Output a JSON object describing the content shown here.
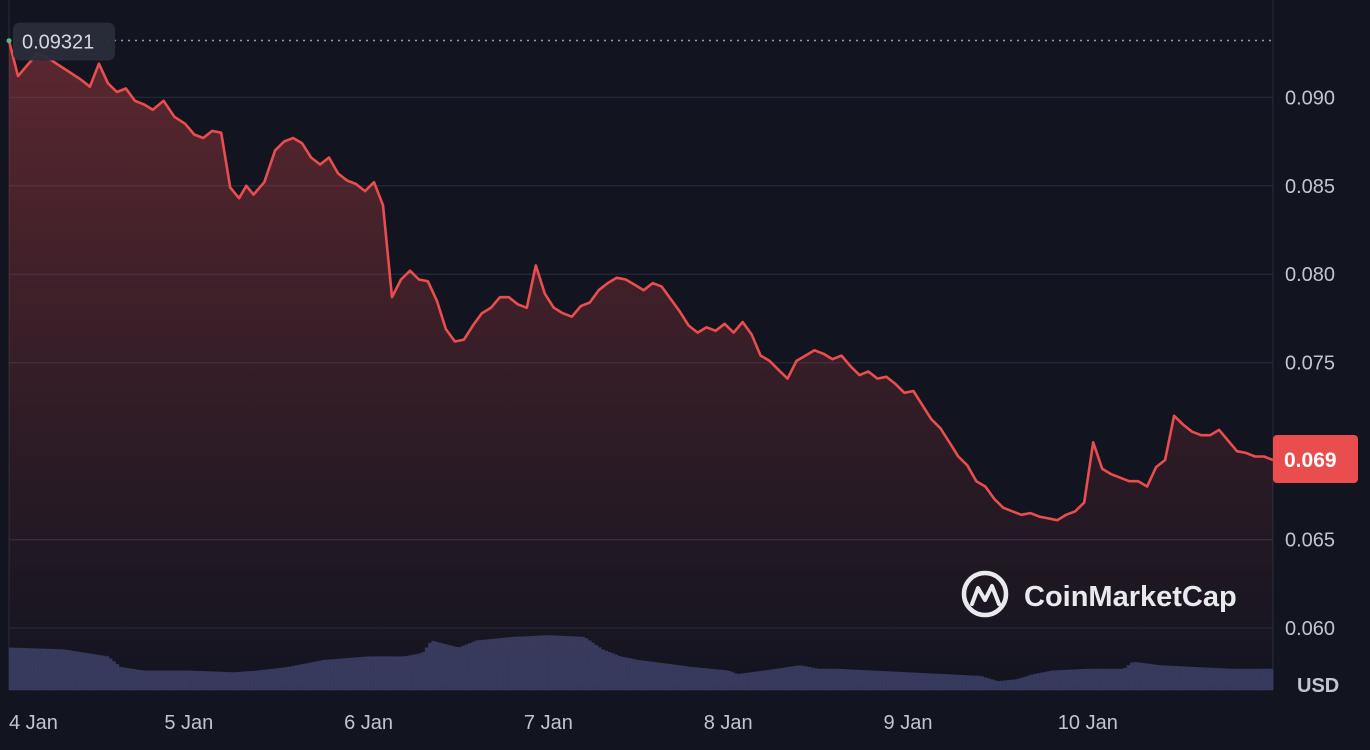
{
  "chart_data": {
    "type": "line",
    "currency": "USD",
    "open_value_label": "0.09321",
    "open_value": 0.09321,
    "last_value_label": "0.069",
    "last_value": 0.0695,
    "ylim": [
      0.0565,
      0.0955
    ],
    "xlim": [
      0,
      7.03
    ],
    "y_ticks": [
      {
        "value": 0.09,
        "label": "0.090"
      },
      {
        "value": 0.085,
        "label": "0.085"
      },
      {
        "value": 0.08,
        "label": "0.080"
      },
      {
        "value": 0.075,
        "label": "0.075"
      },
      {
        "value": 0.065,
        "label": "0.065"
      },
      {
        "value": 0.06,
        "label": "0.060"
      }
    ],
    "x_ticks": [
      {
        "x": 0,
        "label": "4 Jan"
      },
      {
        "x": 1,
        "label": "5 Jan"
      },
      {
        "x": 2,
        "label": "6 Jan"
      },
      {
        "x": 3,
        "label": "7 Jan"
      },
      {
        "x": 4,
        "label": "8 Jan"
      },
      {
        "x": 5,
        "label": "9 Jan"
      },
      {
        "x": 6,
        "label": "10 Jan"
      }
    ],
    "grid": true,
    "series": [
      {
        "color": "#ea4d4d",
        "x": [
          0.0,
          0.05,
          0.1,
          0.16,
          0.22,
          0.28,
          0.34,
          0.4,
          0.45,
          0.5,
          0.55,
          0.6,
          0.65,
          0.7,
          0.75,
          0.8,
          0.86,
          0.92,
          0.98,
          1.03,
          1.08,
          1.13,
          1.18,
          1.23,
          1.28,
          1.32,
          1.36,
          1.42,
          1.48,
          1.53,
          1.58,
          1.63,
          1.68,
          1.73,
          1.78,
          1.83,
          1.88,
          1.93,
          1.98,
          2.03,
          2.08,
          2.13,
          2.18,
          2.23,
          2.28,
          2.33,
          2.38,
          2.43,
          2.48,
          2.53,
          2.58,
          2.63,
          2.68,
          2.73,
          2.78,
          2.83,
          2.88,
          2.93,
          2.98,
          3.03,
          3.08,
          3.13,
          3.18,
          3.23,
          3.28,
          3.33,
          3.38,
          3.43,
          3.48,
          3.53,
          3.58,
          3.63,
          3.68,
          3.73,
          3.78,
          3.83,
          3.88,
          3.93,
          3.98,
          4.03,
          4.08,
          4.13,
          4.18,
          4.23,
          4.28,
          4.33,
          4.38,
          4.43,
          4.48,
          4.53,
          4.58,
          4.63,
          4.68,
          4.73,
          4.78,
          4.83,
          4.88,
          4.93,
          4.98,
          5.03,
          5.08,
          5.13,
          5.18,
          5.23,
          5.28,
          5.33,
          5.38,
          5.43,
          5.48,
          5.53,
          5.58,
          5.63,
          5.68,
          5.73,
          5.78,
          5.83,
          5.88,
          5.93,
          5.98,
          6.03,
          6.08,
          6.13,
          6.18,
          6.23,
          6.28,
          6.33,
          6.38,
          6.43,
          6.48,
          6.53,
          6.58,
          6.63,
          6.68,
          6.73,
          6.78,
          6.83,
          6.88,
          6.93,
          6.98,
          7.03
        ],
        "values": [
          0.0932,
          0.0912,
          0.0918,
          0.0925,
          0.0922,
          0.0918,
          0.0914,
          0.091,
          0.0906,
          0.0919,
          0.0908,
          0.0903,
          0.0905,
          0.0898,
          0.0896,
          0.0893,
          0.0898,
          0.0889,
          0.0885,
          0.0879,
          0.0877,
          0.0881,
          0.088,
          0.0849,
          0.0843,
          0.085,
          0.0845,
          0.0852,
          0.087,
          0.0875,
          0.0877,
          0.0874,
          0.0866,
          0.0862,
          0.0866,
          0.0857,
          0.0853,
          0.0851,
          0.0847,
          0.0852,
          0.0839,
          0.0787,
          0.0797,
          0.0802,
          0.0797,
          0.0796,
          0.0785,
          0.0769,
          0.0762,
          0.0763,
          0.0771,
          0.0778,
          0.0781,
          0.0787,
          0.0787,
          0.0783,
          0.0781,
          0.0805,
          0.0789,
          0.0781,
          0.0778,
          0.0776,
          0.0782,
          0.0784,
          0.0791,
          0.0795,
          0.0798,
          0.0797,
          0.0794,
          0.0791,
          0.0795,
          0.0793,
          0.0786,
          0.0779,
          0.0771,
          0.0767,
          0.077,
          0.0768,
          0.0772,
          0.0767,
          0.0773,
          0.0766,
          0.0754,
          0.0751,
          0.0746,
          0.0741,
          0.0751,
          0.0754,
          0.0757,
          0.0755,
          0.0752,
          0.0754,
          0.0748,
          0.0743,
          0.0745,
          0.0741,
          0.0742,
          0.0738,
          0.0733,
          0.0734,
          0.0726,
          0.0718,
          0.0713,
          0.0705,
          0.0697,
          0.0692,
          0.0683,
          0.068,
          0.0673,
          0.0668,
          0.0666,
          0.0664,
          0.0665,
          0.0663,
          0.0662,
          0.0661,
          0.0664,
          0.0666,
          0.0671,
          0.0705,
          0.069,
          0.0687,
          0.0685,
          0.0683,
          0.0683,
          0.068,
          0.0691,
          0.0695,
          0.072,
          0.0715,
          0.0711,
          0.0709,
          0.0709,
          0.0712,
          0.0706,
          0.07,
          0.0699,
          0.0697,
          0.0697,
          0.0695
        ]
      }
    ],
    "volume": {
      "color": "#3b3f66",
      "x": [
        0.0,
        0.3,
        0.55,
        0.62,
        0.75,
        1.0,
        1.25,
        1.38,
        1.55,
        1.75,
        2.0,
        2.2,
        2.3,
        2.35,
        2.5,
        2.6,
        2.8,
        3.0,
        3.2,
        3.3,
        3.4,
        3.5,
        3.8,
        4.0,
        4.05,
        4.2,
        4.4,
        4.5,
        4.6,
        4.8,
        5.0,
        5.2,
        5.4,
        5.5,
        5.6,
        5.7,
        5.8,
        6.0,
        6.2,
        6.25,
        6.4,
        6.6,
        6.8,
        7.03
      ],
      "values": [
        0.589,
        0.588,
        0.584,
        0.578,
        0.576,
        0.576,
        0.575,
        0.576,
        0.578,
        0.582,
        0.584,
        0.584,
        0.586,
        0.593,
        0.589,
        0.593,
        0.595,
        0.596,
        0.595,
        0.588,
        0.584,
        0.582,
        0.578,
        0.576,
        0.574,
        0.576,
        0.579,
        0.577,
        0.577,
        0.576,
        0.575,
        0.574,
        0.573,
        0.57,
        0.571,
        0.574,
        0.576,
        0.577,
        0.577,
        0.581,
        0.579,
        0.578,
        0.577,
        0.577
      ]
    }
  },
  "watermark": {
    "text": "CoinMarketCap",
    "icon": "coinmarketcap-logo-icon"
  }
}
